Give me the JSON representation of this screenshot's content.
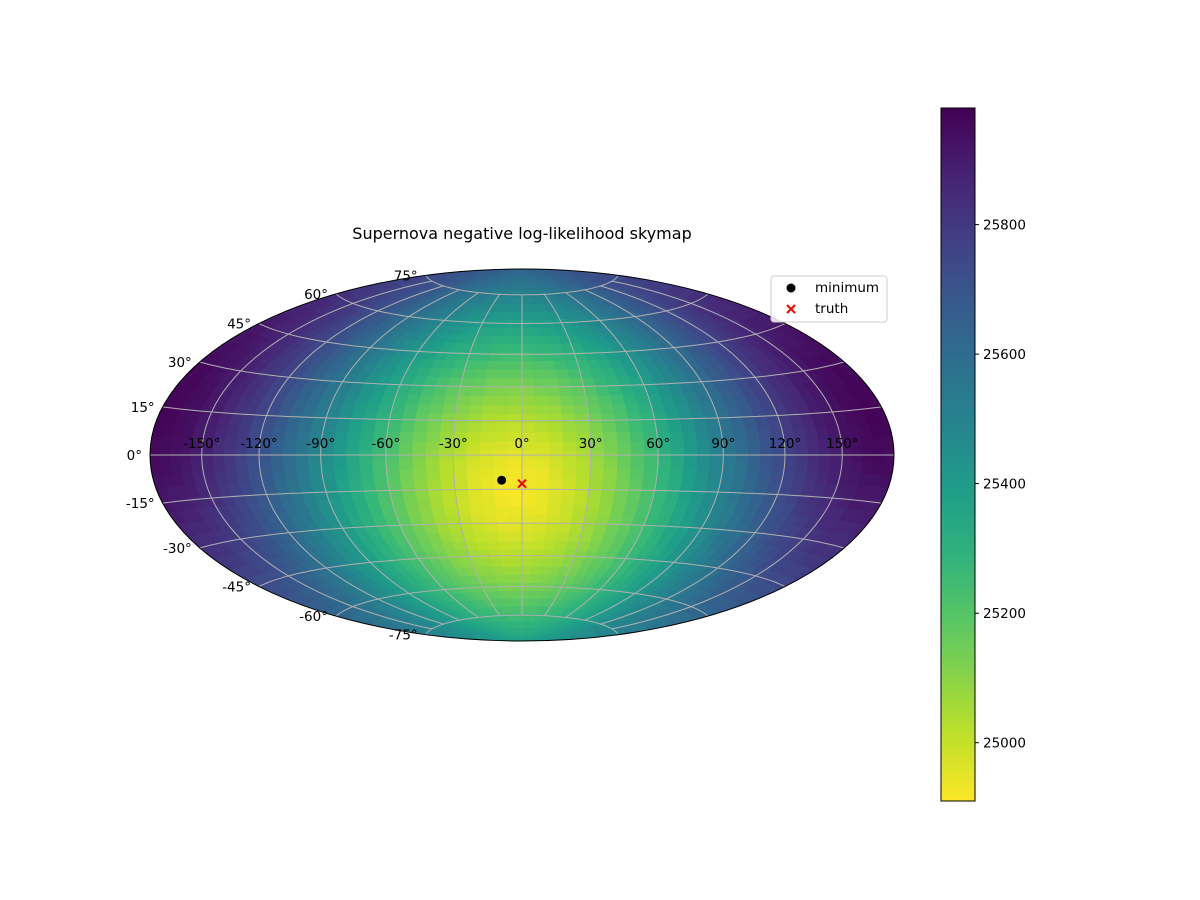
{
  "chart_data": {
    "type": "heatmap",
    "projection": "hammer",
    "title": "Supernova negative log-likelihood skymap",
    "xlabel": "",
    "ylabel": "",
    "lon_ticks": [
      -150,
      -120,
      -90,
      -60,
      -30,
      0,
      30,
      60,
      90,
      120,
      150
    ],
    "lat_ticks": [
      -75,
      -60,
      -45,
      -30,
      -15,
      0,
      15,
      30,
      45,
      60,
      75
    ],
    "lon_tick_labels": [
      "-150°",
      "-120°",
      "-90°",
      "-60°",
      "-30°",
      "0°",
      "30°",
      "60°",
      "90°",
      "120°",
      "150°"
    ],
    "lat_tick_labels": [
      "-75°",
      "-60°",
      "-45°",
      "-30°",
      "-15°",
      "0°",
      "15°",
      "30°",
      "45°",
      "60°",
      "75°"
    ],
    "grid": true,
    "colormap": "viridis_r",
    "colorbar": {
      "vmin": 24910,
      "vmax": 25980,
      "ticks": [
        25000,
        25200,
        25400,
        25600,
        25800
      ],
      "tick_labels": [
        "25000",
        "25200",
        "25400",
        "25600",
        "25800"
      ]
    },
    "field": {
      "description_values_at_center_lon_deg": -3,
      "center_lat_deg": -15,
      "min_value": 24920,
      "max_value": 25970
    },
    "series": [
      {
        "name": "minimum",
        "marker": "circle",
        "color": "#000000",
        "points": [
          {
            "lon": -9,
            "lat": -11
          }
        ]
      },
      {
        "name": "truth",
        "marker": "x",
        "color": "#ff0000",
        "points": [
          {
            "lon": 0,
            "lat": -12.5
          }
        ]
      }
    ],
    "legend": {
      "placement": "top-right",
      "entries": [
        "minimum",
        "truth"
      ]
    }
  }
}
